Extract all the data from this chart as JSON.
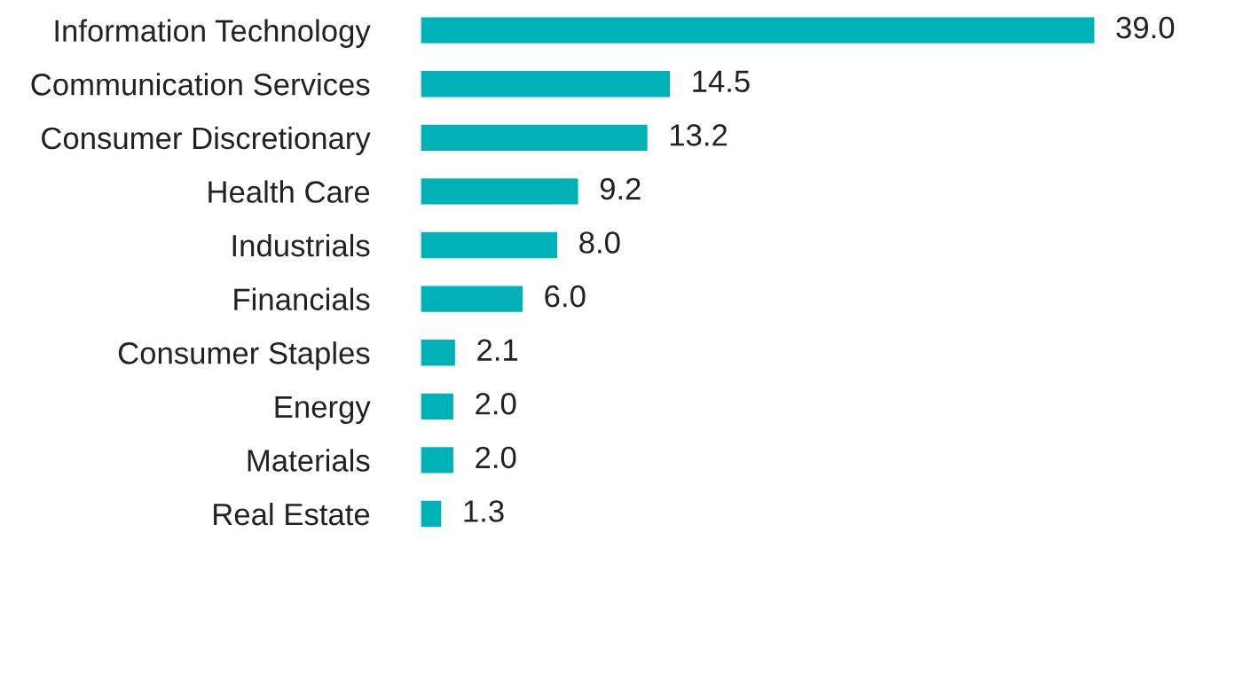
{
  "chart_data": {
    "type": "bar",
    "orientation": "horizontal",
    "categories": [
      "Information Technology",
      "Communication Services",
      "Consumer Discretionary",
      "Health Care",
      "Industrials",
      "Financials",
      "Consumer Staples",
      "Energy",
      "Materials",
      "Real Estate"
    ],
    "values": [
      39.0,
      14.5,
      13.2,
      9.2,
      8.0,
      6.0,
      2.1,
      2.0,
      2.0,
      1.3
    ],
    "value_labels": [
      "39.0",
      "14.5",
      "13.2",
      "9.2",
      "8.0",
      "6.0",
      "2.1",
      "2.0",
      "2.0",
      "1.3"
    ],
    "color": "#00b2b8",
    "tick_labels": "y",
    "grid": false,
    "legend": false
  }
}
